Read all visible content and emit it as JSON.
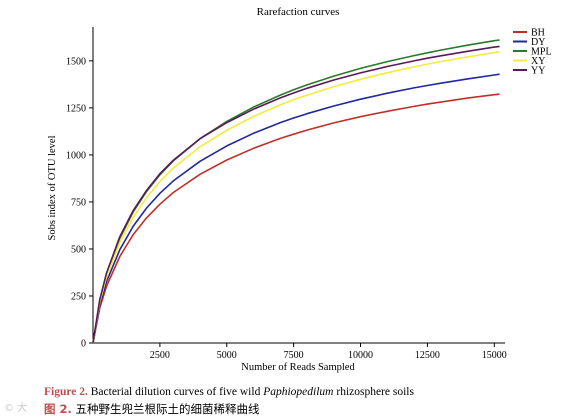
{
  "chart_data": {
    "type": "line",
    "title": "Rarefaction curves",
    "xlabel": "Number of Reads Sampled",
    "ylabel": "Sobs index of OTU level",
    "xlim": [
      0,
      15400
    ],
    "ylim": [
      0,
      1680
    ],
    "xticks": [
      2500,
      5000,
      7500,
      10000,
      12500,
      15000
    ],
    "yticks": [
      0,
      250,
      500,
      750,
      1000,
      1250,
      1500
    ],
    "grid": false,
    "legend_position": "top-right",
    "x": [
      0,
      250,
      500,
      1000,
      1500,
      2000,
      2500,
      3000,
      4000,
      5000,
      6000,
      7000,
      7500,
      8000,
      9000,
      10000,
      11000,
      12000,
      12500,
      13000,
      14000,
      15000,
      15200
    ],
    "series": [
      {
        "name": "BH",
        "color": "#c0302a",
        "values": [
          0,
          185,
          300,
          460,
          575,
          665,
          738,
          800,
          897,
          973,
          1035,
          1088,
          1110,
          1132,
          1170,
          1203,
          1232,
          1258,
          1270,
          1281,
          1302,
          1320,
          1323
        ]
      },
      {
        "name": "DY",
        "color": "#2028a0",
        "values": [
          0,
          200,
          325,
          496,
          620,
          717,
          796,
          862,
          966,
          1048,
          1115,
          1172,
          1196,
          1219,
          1260,
          1296,
          1328,
          1356,
          1369,
          1381,
          1404,
          1425,
          1429
        ]
      },
      {
        "name": "MPL",
        "color": "#2a7a2a",
        "values": [
          0,
          225,
          365,
          557,
          696,
          805,
          894,
          968,
          1086,
          1178,
          1254,
          1318,
          1346,
          1372,
          1419,
          1460,
          1496,
          1528,
          1543,
          1557,
          1583,
          1607,
          1611
        ]
      },
      {
        "name": "XY",
        "color": "#f2ec3c",
        "values": [
          0,
          216,
          350,
          535,
          668,
          773,
          858,
          930,
          1043,
          1131,
          1204,
          1266,
          1293,
          1318,
          1363,
          1402,
          1437,
          1468,
          1483,
          1496,
          1521,
          1544,
          1548
        ]
      },
      {
        "name": "YY",
        "color": "#5a1a5a",
        "values": [
          0,
          228,
          370,
          565,
          703,
          811,
          900,
          972,
          1086,
          1172,
          1243,
          1303,
          1329,
          1354,
          1398,
          1436,
          1470,
          1500,
          1514,
          1527,
          1551,
          1573,
          1577
        ]
      }
    ]
  },
  "caption": {
    "en_label": "Figure 2.",
    "en_text_pre": " Bacterial dilution curves of five wild ",
    "en_text_italic": "Paphiopedilum",
    "en_text_post": " rhizosphere soils",
    "zh_label": "图 2.",
    "zh_text": " 五种野生兜兰根际土的细菌稀释曲线"
  },
  "watermark": "© 大"
}
